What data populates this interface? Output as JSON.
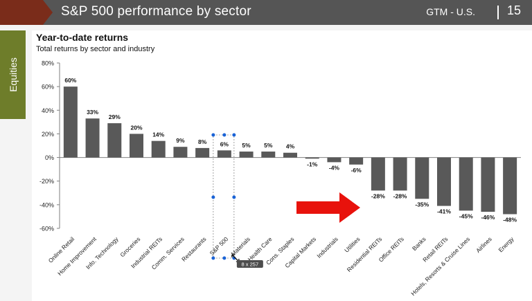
{
  "header": {
    "title": "S&P 500 performance by sector",
    "gtm_label": "GTM - U.S.",
    "page_number": "15"
  },
  "side_tab": {
    "label": "Equities"
  },
  "colors": {
    "bar": "#595959",
    "header_bg": "#555555",
    "tab_green": "#6e7d2a",
    "chevron": "#7a2c1a",
    "arrow": "#e8120c",
    "selection": "#1a63d6"
  },
  "selection_tooltip": "8 x 257",
  "chart_data": {
    "type": "bar",
    "title": "Year-to-date returns",
    "subtitle": "Total returns by sector and industry",
    "ylim": [
      -60,
      80
    ],
    "yticks": [
      80,
      60,
      40,
      20,
      0,
      -20,
      -40,
      -60
    ],
    "ytick_labels": [
      "80%",
      "60%",
      "40%",
      "20%",
      "0%",
      "-20%",
      "-40%",
      "-60%"
    ],
    "categories": [
      "Online Retail",
      "Home Improvement",
      "Info. Technology",
      "Groceries",
      "Industrial REITs",
      "Comm. Services",
      "Restaurants",
      "S&P 500",
      "Materials",
      "Health Care",
      "Cons. Staples",
      "Capital Markets",
      "Industrials",
      "Utilities",
      "Residential REITs",
      "Office REITs",
      "Banks",
      "Retail REITs",
      "Hotels, Resorts & Cruise Lines",
      "Airlines",
      "Energy"
    ],
    "values": [
      60,
      33,
      29,
      20,
      14,
      9,
      8,
      6,
      5,
      5,
      4,
      -1,
      -4,
      -6,
      -28,
      -28,
      -35,
      -41,
      -45,
      -46,
      -48
    ],
    "value_labels": [
      "60%",
      "33%",
      "29%",
      "20%",
      "14%",
      "9%",
      "8%",
      "6%",
      "5%",
      "5%",
      "4%",
      "-1%",
      "-4%",
      "-6%",
      "-28%",
      "-28%",
      "-35%",
      "-41%",
      "-45%",
      "-46%",
      "-48%"
    ],
    "grid": false,
    "legend": "none"
  }
}
